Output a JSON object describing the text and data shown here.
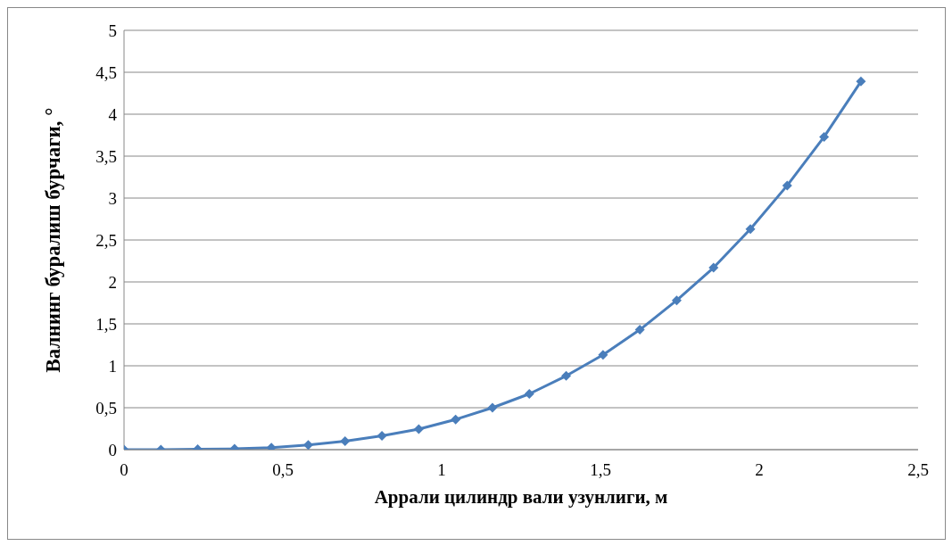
{
  "chart_data": {
    "type": "line",
    "xlabel": "Аррали цилиндр вали узунлиги, м",
    "ylabel": "Валнинг буралиш бурчаги, °",
    "x": [
      0,
      0.116,
      0.232,
      0.348,
      0.464,
      0.58,
      0.696,
      0.812,
      0.928,
      1.044,
      1.16,
      1.276,
      1.392,
      1.508,
      1.624,
      1.74,
      1.856,
      1.972,
      2.088,
      2.204,
      2.32
    ],
    "series": [
      {
        "color": "#4a7ebb",
        "values": [
          0,
          0,
          0.005,
          0.01,
          0.025,
          0.055,
          0.1,
          0.165,
          0.245,
          0.36,
          0.5,
          0.665,
          0.88,
          1.13,
          1.43,
          1.78,
          2.17,
          2.63,
          3.15,
          3.73,
          4.39
        ]
      }
    ],
    "xlim": [
      0,
      2.5
    ],
    "xticks": [
      0,
      {
        "value": 0.5,
        "label": "0,5"
      },
      1,
      {
        "value": 1.5,
        "label": "1,5"
      },
      2,
      {
        "value": 2.5,
        "label": "2,5"
      }
    ],
    "ylim": [
      0,
      5
    ],
    "yticks": [
      0,
      {
        "value": 0.5,
        "label": "0,5"
      },
      1,
      {
        "value": 1.5,
        "label": "1,5"
      },
      2,
      {
        "value": 2.5,
        "label": "2,5"
      },
      3,
      {
        "value": 3.5,
        "label": "3,5"
      },
      4,
      {
        "value": 4.5,
        "label": "4,5"
      },
      5
    ],
    "grid": "y",
    "marker": "diamond",
    "line_style": "solid",
    "legend": false
  }
}
